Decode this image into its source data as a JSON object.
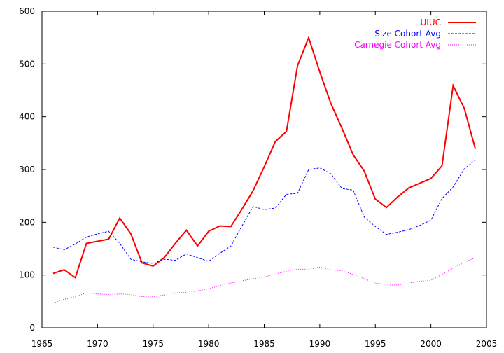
{
  "chart_data": {
    "type": "line",
    "title": "",
    "xlabel": "",
    "ylabel": "",
    "xlim": [
      1965,
      2005
    ],
    "ylim": [
      0,
      600
    ],
    "xticks": [
      1965,
      1970,
      1975,
      1980,
      1985,
      1990,
      1995,
      2000,
      2005
    ],
    "yticks": [
      0,
      100,
      200,
      300,
      400,
      500,
      600
    ],
    "grid": false,
    "legend_position": "top-right",
    "series": [
      {
        "name": "UIUC",
        "color": "#ff0000",
        "style": "solid",
        "x": [
          1966,
          1967,
          1968,
          1969,
          1970,
          1971,
          1972,
          1973,
          1974,
          1975,
          1976,
          1977,
          1978,
          1979,
          1980,
          1981,
          1982,
          1983,
          1984,
          1985,
          1986,
          1987,
          1988,
          1989,
          1990,
          1991,
          1992,
          1993,
          1994,
          1995,
          1996,
          1997,
          1998,
          1999,
          2000,
          2001,
          2002,
          2003,
          2004
        ],
        "values": [
          103,
          110,
          95,
          160,
          164,
          168,
          208,
          178,
          123,
          117,
          133,
          160,
          185,
          155,
          183,
          193,
          192,
          225,
          260,
          305,
          353,
          372,
          497,
          550,
          485,
          425,
          378,
          328,
          297,
          244,
          228,
          248,
          265,
          274,
          283,
          307,
          459,
          416,
          339
        ]
      },
      {
        "name": "Size Cohort Avg",
        "color": "#0000ff",
        "style": "dashed",
        "x": [
          1966,
          1967,
          1968,
          1969,
          1970,
          1971,
          1972,
          1973,
          1974,
          1975,
          1976,
          1977,
          1978,
          1979,
          1980,
          1981,
          1982,
          1983,
          1984,
          1985,
          1986,
          1987,
          1988,
          1989,
          1990,
          1991,
          1992,
          1993,
          1994,
          1995,
          1996,
          1997,
          1998,
          1999,
          2000,
          2001,
          2002,
          2003,
          2004
        ],
        "values": [
          153,
          148,
          159,
          172,
          178,
          183,
          160,
          130,
          125,
          122,
          130,
          128,
          140,
          133,
          126,
          141,
          155,
          193,
          230,
          224,
          227,
          253,
          255,
          300,
          303,
          292,
          264,
          261,
          210,
          192,
          177,
          181,
          186,
          194,
          204,
          245,
          267,
          301,
          318
        ]
      },
      {
        "name": "Carnegie Cohort Avg",
        "color": "#ff00ff",
        "style": "dotted",
        "x": [
          1966,
          1967,
          1968,
          1969,
          1970,
          1971,
          1972,
          1973,
          1974,
          1975,
          1976,
          1977,
          1978,
          1979,
          1980,
          1981,
          1982,
          1983,
          1984,
          1985,
          1986,
          1987,
          1988,
          1989,
          1990,
          1991,
          1992,
          1993,
          1994,
          1995,
          1996,
          1997,
          1998,
          1999,
          2000,
          2001,
          2002,
          2003,
          2004
        ],
        "values": [
          47,
          54,
          59,
          66,
          64,
          63,
          64,
          63,
          59,
          59,
          62,
          66,
          67,
          70,
          74,
          80,
          85,
          89,
          93,
          96,
          102,
          107,
          111,
          111,
          115,
          110,
          108,
          101,
          93,
          85,
          81,
          81,
          85,
          88,
          90,
          101,
          113,
          124,
          133
        ]
      }
    ]
  }
}
